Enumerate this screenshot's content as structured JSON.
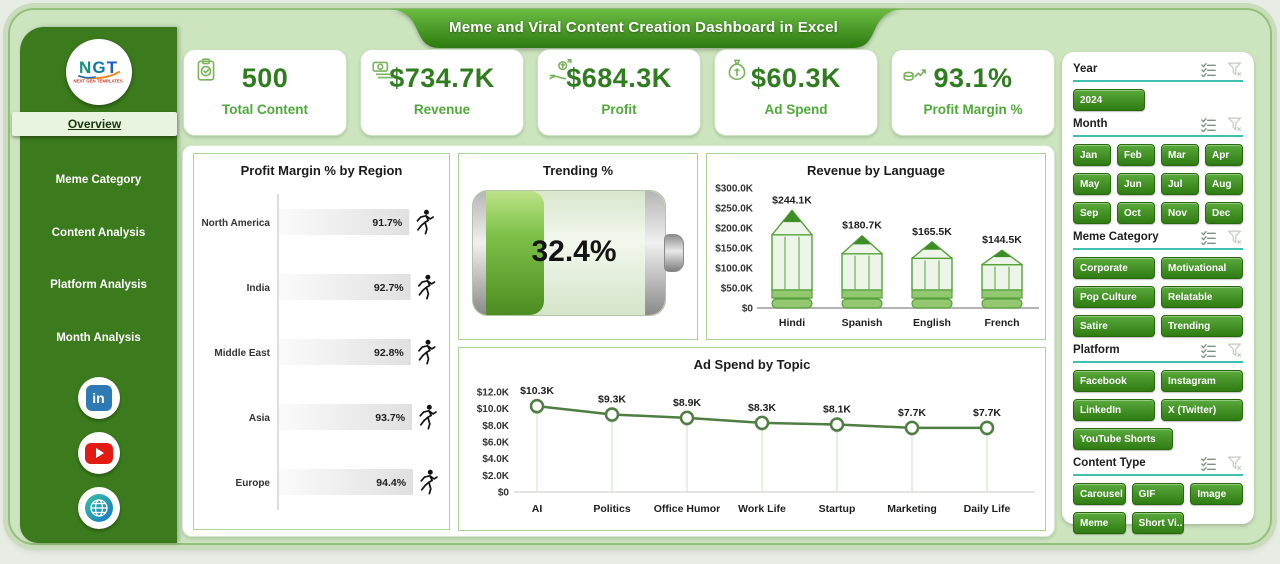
{
  "title": "Meme and Viral Content Creation Dashboard in Excel",
  "logo": {
    "text": "NGT",
    "subtext": "NEXT GEN TEMPLATES"
  },
  "sidebar": {
    "active": "Overview",
    "items": [
      "Overview",
      "Meme Category",
      "Content Analysis",
      "Platform Analysis",
      "Month Analysis"
    ]
  },
  "social": [
    {
      "name": "linkedin"
    },
    {
      "name": "youtube"
    },
    {
      "name": "website"
    }
  ],
  "kpis": [
    {
      "icon": "clipboard-check-icon",
      "value": "500",
      "label": "Total Content"
    },
    {
      "icon": "money-bills-icon",
      "value": "$734.7K",
      "label": "Revenue"
    },
    {
      "icon": "hand-money-icon",
      "value": "$684.3K",
      "label": "Profit"
    },
    {
      "icon": "money-bag-icon",
      "value": "$60.3K",
      "label": "Ad Spend"
    },
    {
      "icon": "coins-growth-icon",
      "value": "93.1%",
      "label": "Profit Margin %"
    }
  ],
  "chart_data": [
    {
      "type": "bar",
      "orientation": "horizontal",
      "title": "Profit Margin % by Region",
      "categories": [
        "North America",
        "India",
        "Middle East",
        "Asia",
        "Europe"
      ],
      "values": [
        91.7,
        92.7,
        92.8,
        93.7,
        94.4
      ],
      "labels": [
        "91.7%",
        "92.7%",
        "92.8%",
        "93.7%",
        "94.4%"
      ],
      "xlim": [
        0,
        100
      ],
      "grid": false,
      "bar_color": "gray-gradient",
      "end_marker": "runner-icon"
    },
    {
      "type": "gauge",
      "style": "battery",
      "title": "Trending %",
      "value": 32.4,
      "label": "32.4%",
      "range": [
        0,
        100
      ]
    },
    {
      "type": "bar",
      "orientation": "vertical",
      "bar_style": "pencil",
      "title": "Revenue by Language",
      "categories": [
        "Hindi",
        "Spanish",
        "English",
        "French"
      ],
      "values": [
        244.1,
        180.7,
        165.5,
        144.5
      ],
      "labels": [
        "$244.1K",
        "$180.7K",
        "$165.5K",
        "$144.5K"
      ],
      "yticks": [
        "$0",
        "$50.0K",
        "$100.0K",
        "$150.0K",
        "$200.0K",
        "$250.0K",
        "$300.0K"
      ],
      "ylim": [
        0,
        300
      ],
      "grid": false
    },
    {
      "type": "line",
      "title": "Ad Spend by Topic",
      "categories": [
        "AI",
        "Politics",
        "Office Humor",
        "Work Life",
        "Startup",
        "Marketing",
        "Daily Life"
      ],
      "values": [
        10.3,
        9.3,
        8.9,
        8.3,
        8.1,
        7.7,
        7.7
      ],
      "labels": [
        "$10.3K",
        "$9.3K",
        "$8.9K",
        "$8.3K",
        "$8.1K",
        "$7.7K",
        "$7.7K"
      ],
      "yticks": [
        "$0",
        "$2.0K",
        "$4.0K",
        "$6.0K",
        "$8.0K",
        "$10.0K",
        "$12.0K"
      ],
      "ylim": [
        0,
        12
      ],
      "grid": false,
      "line_color": "#4e7e42",
      "marker": "circle"
    }
  ],
  "filters": [
    {
      "label": "Year",
      "cols": 1,
      "buttons": [
        "2024"
      ]
    },
    {
      "label": "Month",
      "cols": 4,
      "buttons": [
        "Jan",
        "Feb",
        "Mar",
        "Apr",
        "May",
        "Jun",
        "Jul",
        "Aug",
        "Sep",
        "Oct",
        "Nov",
        "Dec"
      ]
    },
    {
      "label": "Meme Category",
      "cols": 2,
      "buttons": [
        "Corporate",
        "Motivational",
        "Pop Culture",
        "Relatable",
        "Satire",
        "Trending"
      ]
    },
    {
      "label": "Platform",
      "cols": 2,
      "buttons": [
        "Facebook",
        "Instagram",
        "LinkedIn",
        "X (Twitter)",
        "YouTube Shorts"
      ]
    },
    {
      "label": "Content Type",
      "cols": 3,
      "buttons": [
        "Carousel",
        "GIF",
        "Image",
        "Meme",
        "Short Vi..."
      ]
    }
  ],
  "colors": {
    "sidebar_green": "#3b7a1d",
    "canvas_green": "#cde5bf",
    "ribbon_green_top": "#66b83e",
    "ribbon_green_bottom": "#2c7a10",
    "slicer_green": "#3f8c1e",
    "kpi_value_green": "#2f7d1f",
    "kpi_label_green": "#4faa3a",
    "underline_teal": "#3fbfae",
    "battery_fill_green": "#7ec24a",
    "pencil_green": "#55a13a",
    "line_green": "#4e7e42"
  }
}
